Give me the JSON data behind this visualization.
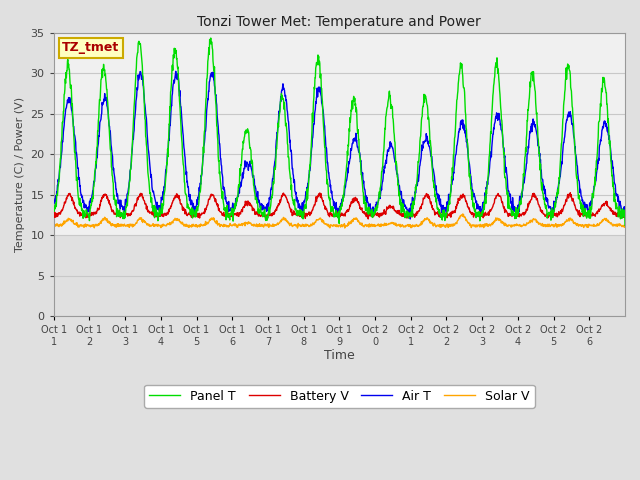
{
  "title": "Tonzi Tower Met: Temperature and Power",
  "xlabel": "Time",
  "ylabel": "Temperature (C) / Power (V)",
  "ylim": [
    0,
    35
  ],
  "yticks": [
    0,
    5,
    10,
    15,
    20,
    25,
    30,
    35
  ],
  "colors": {
    "panel_t": "#00DD00",
    "battery_v": "#DD0000",
    "air_t": "#0000EE",
    "solar_v": "#FFA500"
  },
  "legend_labels": [
    "Panel T",
    "Battery V",
    "Air T",
    "Solar V"
  ],
  "annotation_text": "TZ_tmet",
  "annotation_bg": "#FFFFC0",
  "annotation_border": "#CCAA00",
  "annotation_text_color": "#AA0000",
  "x_tick_labels": [
    "Oct 1\n1",
    "Oct 1\n2",
    "Oct 1\n3",
    "Oct 1\n4",
    "Oct 1\n5",
    "Oct 1\n6",
    "Oct 1\n7",
    "Oct 1\n8",
    "Oct 1\n9",
    "Oct 2\n0",
    "Oct 2\n1",
    "Oct 2\n2",
    "Oct 2\n3",
    "Oct 2\n4",
    "Oct 2\n5",
    "Oct 2\n6"
  ],
  "background_plot": "#E0E0E0",
  "background_data": "#F0F0F0",
  "grid_color": "#C8C8C8",
  "linewidth": 1.0
}
